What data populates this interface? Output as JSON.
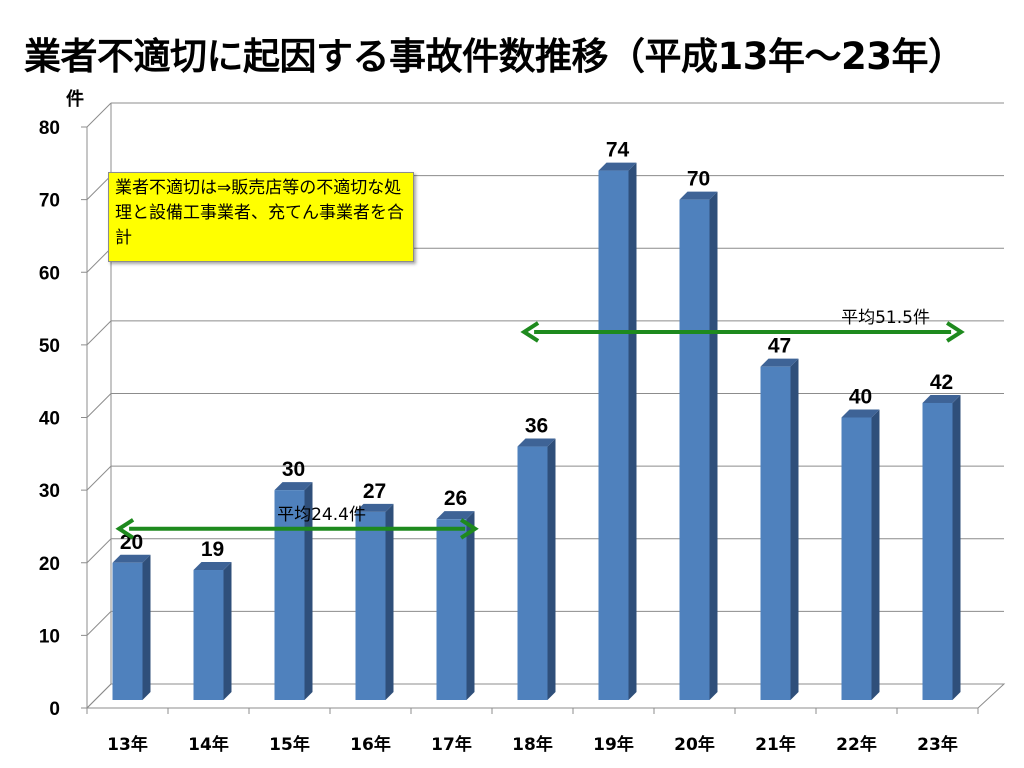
{
  "title": "業者不適切に起因する事故件数推移（平成13年～23年）",
  "note": "業者不適切は⇒販売店等の不適切な処理と設備工事業者、充てん事業者を合計",
  "chart_data": {
    "type": "bar",
    "ylabel": "件",
    "categories": [
      "13年",
      "14年",
      "15年",
      "16年",
      "17年",
      "18年",
      "19年",
      "20年",
      "21年",
      "22年",
      "23年"
    ],
    "values": [
      20,
      19,
      30,
      27,
      26,
      36,
      74,
      70,
      47,
      40,
      42
    ],
    "ylim": [
      0,
      80
    ],
    "yticks": [
      0,
      10,
      20,
      30,
      40,
      50,
      60,
      70,
      80
    ],
    "grid": true,
    "bar_color": "#4f81bd",
    "averages": [
      {
        "label": "平均24.4件",
        "value": 24.4,
        "from": "13年",
        "to": "17年",
        "color": "#1e8a1e"
      },
      {
        "label": "平均51.5件",
        "value": 51.5,
        "from": "18年",
        "to": "23年",
        "color": "#1e8a1e"
      }
    ]
  }
}
